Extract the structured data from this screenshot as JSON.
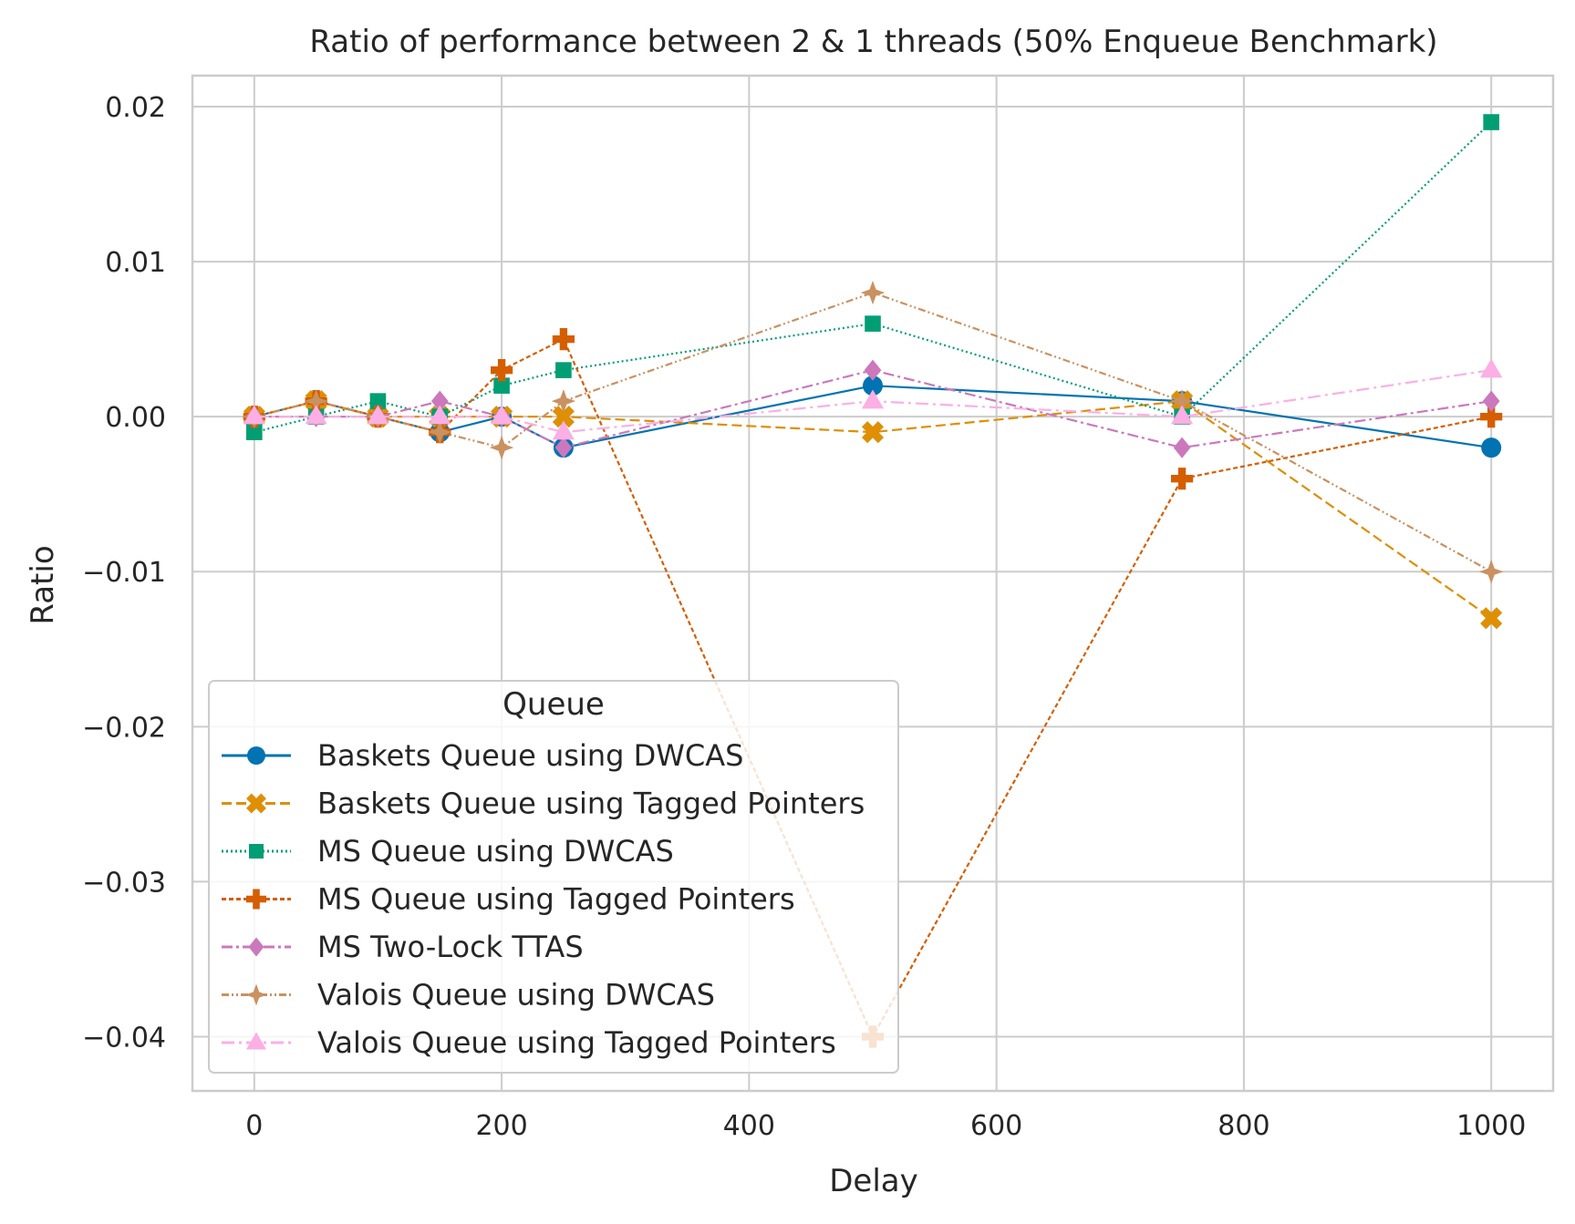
{
  "chart_data": {
    "type": "line",
    "title": "Ratio of performance between 2 & 1 threads (50% Enqueue Benchmark)",
    "xlabel": "Delay",
    "ylabel": "Ratio",
    "xlim": [
      -50,
      1050
    ],
    "ylim": [
      -0.0435,
      0.022
    ],
    "xticks": [
      0,
      200,
      400,
      600,
      800,
      1000
    ],
    "yticks": [
      -0.04,
      -0.03,
      -0.02,
      -0.01,
      0.0,
      0.01,
      0.02
    ],
    "ytick_labels": [
      "−0.04",
      "−0.03",
      "−0.02",
      "−0.01",
      "0.00",
      "0.01",
      "0.02"
    ],
    "grid": true,
    "legend": {
      "title": "Queue",
      "position": "lower-left"
    },
    "series": [
      {
        "name": "Baskets Queue using DWCAS",
        "color": "#0173b2",
        "marker": "circle",
        "dash": "solid",
        "x": [
          0,
          50,
          100,
          150,
          200,
          250,
          500,
          750,
          1000
        ],
        "y": [
          0.0,
          0.001,
          0.0,
          -0.001,
          0.0,
          -0.002,
          0.002,
          0.001,
          -0.002
        ]
      },
      {
        "name": "Baskets Queue using Tagged Pointers",
        "color": "#de8f05",
        "marker": "x",
        "dash": "dashed",
        "x": [
          0,
          50,
          100,
          150,
          200,
          250,
          500,
          750,
          1000
        ],
        "y": [
          0.0,
          0.001,
          0.0,
          0.0,
          0.0,
          0.0,
          -0.001,
          0.001,
          -0.013
        ]
      },
      {
        "name": "MS Queue using DWCAS",
        "color": "#029e73",
        "marker": "square",
        "dash": "dotted",
        "x": [
          0,
          50,
          100,
          150,
          200,
          250,
          500,
          750,
          1000
        ],
        "y": [
          -0.001,
          0.0,
          0.001,
          0.0,
          0.002,
          0.003,
          0.006,
          0.0,
          0.019
        ]
      },
      {
        "name": "MS Queue using Tagged Pointers",
        "color": "#d55e00",
        "marker": "plus",
        "dash": "densedash",
        "x": [
          0,
          50,
          100,
          150,
          200,
          250,
          500,
          750,
          1000
        ],
        "y": [
          0.0,
          0.001,
          0.0,
          -0.001,
          0.003,
          0.005,
          -0.04,
          -0.004,
          0.0
        ]
      },
      {
        "name": "MS Two-Lock TTAS",
        "color": "#cc78bc",
        "marker": "diamond",
        "dash": "dashdot",
        "x": [
          0,
          50,
          100,
          150,
          200,
          250,
          500,
          750,
          1000
        ],
        "y": [
          0.0,
          0.0,
          0.0,
          0.001,
          0.0,
          -0.002,
          0.003,
          -0.002,
          0.001
        ]
      },
      {
        "name": "Valois Queue using DWCAS",
        "color": "#ca9161",
        "marker": "star",
        "dash": "dashdotdot",
        "x": [
          0,
          50,
          100,
          150,
          200,
          250,
          500,
          750,
          1000
        ],
        "y": [
          0.0,
          0.001,
          0.0,
          -0.001,
          -0.002,
          0.001,
          0.008,
          0.001,
          -0.01
        ]
      },
      {
        "name": "Valois Queue using Tagged Pointers",
        "color": "#fbafe4",
        "marker": "triangle",
        "dash": "longdashdot",
        "x": [
          0,
          50,
          100,
          150,
          200,
          250,
          500,
          750,
          1000
        ],
        "y": [
          0.0,
          0.0,
          0.0,
          0.0,
          0.0,
          -0.001,
          0.001,
          0.0,
          0.003
        ]
      }
    ]
  }
}
